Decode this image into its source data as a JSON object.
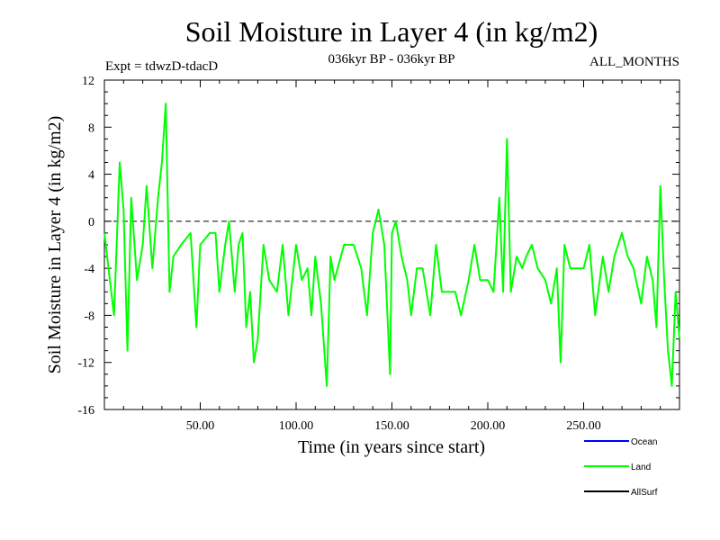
{
  "title": "Soil Moisture in Layer 4 (in kg/m2)",
  "subtitle_left": "Expt = tdwzD-tdacD",
  "subtitle_center": "036kyr BP - 036kyr BP",
  "subtitle_right": "ALL_MONTHS",
  "colors": {
    "ocean": "#0000ff",
    "land": "#00ff00",
    "allsurf": "#000000",
    "axis": "#000000",
    "zero_line": "#000000"
  },
  "chart_data": {
    "type": "line",
    "title": "Soil Moisture in Layer 4 (in kg/m2)",
    "xlabel": "Time (in years since start)",
    "ylabel": "Soil Moisture in Layer 4 (in kg/m2)",
    "xlim": [
      0,
      300
    ],
    "ylim": [
      -16,
      12
    ],
    "x_ticks": [
      50,
      100,
      150,
      200,
      250
    ],
    "x_tick_labels": [
      "50.00",
      "100.00",
      "150.00",
      "200.00",
      "250.00"
    ],
    "y_ticks": [
      12,
      8,
      4,
      0,
      -4,
      -8,
      -12,
      -16
    ],
    "y_tick_labels": [
      "12",
      "8",
      "4",
      "0",
      "-4",
      "-8",
      "-12",
      "-16"
    ],
    "zero_line": true,
    "grid": false,
    "legend_position": "bottom-right",
    "legend": [
      "Ocean",
      "Land",
      "AllSurf"
    ],
    "series": [
      {
        "name": "Land",
        "color": "#00ff00",
        "x": [
          0,
          5,
          8,
          10,
          12,
          14,
          17,
          20,
          22,
          25,
          28,
          30,
          32,
          34,
          36,
          40,
          45,
          48,
          50,
          55,
          58,
          60,
          63,
          65,
          68,
          70,
          72,
          74,
          76,
          78,
          80,
          83,
          86,
          90,
          93,
          96,
          100,
          103,
          106,
          108,
          110,
          113,
          116,
          118,
          120,
          125,
          130,
          134,
          137,
          140,
          143,
          146,
          149,
          150,
          152,
          155,
          158,
          160,
          163,
          166,
          170,
          173,
          176,
          180,
          183,
          186,
          190,
          193,
          196,
          200,
          203,
          206,
          208,
          210,
          212,
          215,
          218,
          220,
          223,
          226,
          230,
          233,
          236,
          238,
          240,
          243,
          246,
          250,
          253,
          256,
          260,
          263,
          266,
          270,
          273,
          276,
          280,
          283,
          286,
          288,
          290,
          292,
          294,
          296,
          298,
          300
        ],
        "y": [
          -1,
          -8,
          5,
          1,
          -11,
          2,
          -5,
          -2,
          3,
          -4,
          2,
          5,
          10,
          -6,
          -3,
          -2,
          -1,
          -9,
          -2,
          -1,
          -1,
          -6,
          -2,
          0,
          -6,
          -2,
          -1,
          -9,
          -6,
          -12,
          -10,
          -2,
          -5,
          -6,
          -2,
          -8,
          -2,
          -5,
          -4,
          -8,
          -3,
          -7,
          -14,
          -3,
          -5,
          -2,
          -2,
          -4,
          -8,
          -1,
          1,
          -2,
          -13,
          -1,
          0,
          -3,
          -5,
          -8,
          -4,
          -4,
          -8,
          -2,
          -6,
          -6,
          -6,
          -8,
          -5,
          -2,
          -5,
          -5,
          -6,
          2,
          -6,
          7,
          -6,
          -3,
          -4,
          -3,
          -2,
          -4,
          -5,
          -7,
          -4,
          -12,
          -2,
          -4,
          -4,
          -4,
          -2,
          -8,
          -3,
          -6,
          -3,
          -1,
          -3,
          -4,
          -7,
          -3,
          -5,
          -9,
          3,
          -5,
          -11,
          -14,
          -6,
          -10
        ]
      }
    ]
  }
}
